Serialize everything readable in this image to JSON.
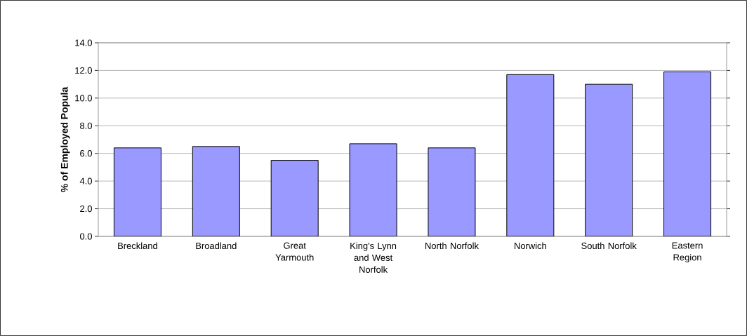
{
  "chart_data": {
    "type": "bar",
    "ylabel": "**% of Employed Popula**",
    "categories": [
      "Breckland",
      "Broadland",
      "Great Yarmouth",
      "King's Lynn and West Norfolk",
      "North Norfolk",
      "Norwich",
      "South Norfolk",
      "Eastern Region"
    ],
    "values": [
      6.4,
      6.5,
      5.5,
      6.7,
      6.4,
      11.7,
      11.0,
      11.9
    ],
    "color": "#9999ff",
    "ylim": [
      0,
      14
    ],
    "yticks": [
      {
        "value": 0,
        "label": "0.0"
      },
      {
        "value": 2,
        "label": "2.0"
      },
      {
        "value": 4,
        "label": "4.0"
      },
      {
        "value": 6,
        "label": "6.0"
      },
      {
        "value": 8,
        "label": "8.0"
      },
      {
        "value": 10,
        "label": "10.0"
      },
      {
        "value": 12,
        "label": "12.0"
      },
      {
        "value": 14,
        "label": "14.0"
      }
    ],
    "grid": "y"
  }
}
